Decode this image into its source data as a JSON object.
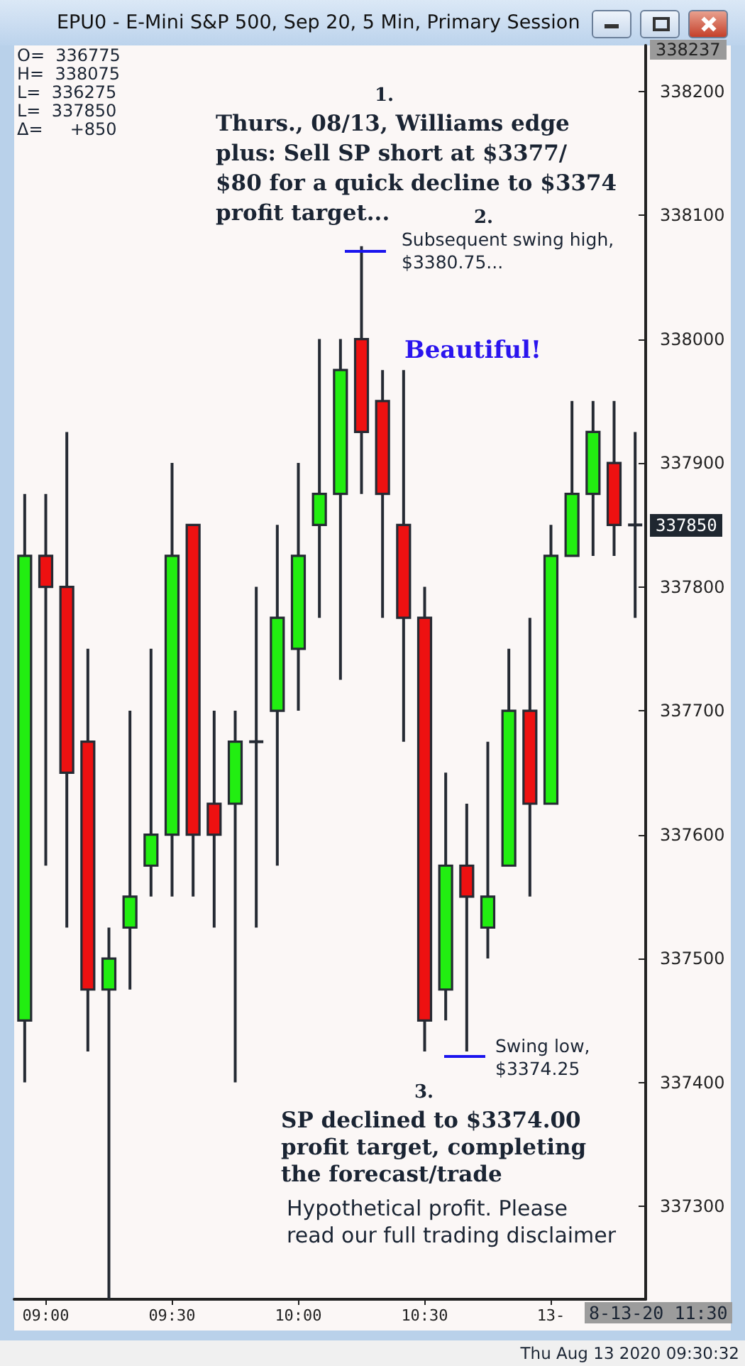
{
  "chart_data": {
    "type": "candlestick",
    "title": "EPU0 - E-Mini S&P 500, Sep 20, 5 Min, Primary Session",
    "categories": [
      null,
      "09:00",
      null,
      null,
      null,
      null,
      null,
      "09:30",
      null,
      null,
      null,
      null,
      null,
      "10:00",
      null,
      null,
      null,
      null,
      null,
      "10:30",
      null,
      null,
      null,
      null,
      null,
      "13-",
      null,
      null,
      null,
      null
    ],
    "ohlc": [
      [
        337450,
        337875,
        337400,
        337825
      ],
      [
        337825,
        337875,
        337575,
        337800
      ],
      [
        337800,
        337925,
        337525,
        337650
      ],
      [
        337675,
        337750,
        337425,
        337475
      ],
      [
        337475,
        337525,
        337225,
        337500
      ],
      [
        337525,
        337700,
        337475,
        337550
      ],
      [
        337575,
        337750,
        337550,
        337600
      ],
      [
        337600,
        337900,
        337550,
        337825
      ],
      [
        337850,
        337850,
        337550,
        337600
      ],
      [
        337625,
        337700,
        337525,
        337600
      ],
      [
        337625,
        337700,
        337400,
        337675
      ],
      [
        337675,
        337800,
        337525,
        337675
      ],
      [
        337700,
        337850,
        337575,
        337775
      ],
      [
        337750,
        337900,
        337700,
        337825
      ],
      [
        337850,
        338000,
        337775,
        337875
      ],
      [
        337875,
        338000,
        337725,
        337975
      ],
      [
        338000,
        338075,
        337875,
        337925
      ],
      [
        337950,
        337975,
        337775,
        337875
      ],
      [
        337850,
        337975,
        337675,
        337775
      ],
      [
        337775,
        337800,
        337425,
        337450
      ],
      [
        337475,
        337650,
        337450,
        337575
      ],
      [
        337575,
        337625,
        337425,
        337550
      ],
      [
        337525,
        337675,
        337500,
        337550
      ],
      [
        337575,
        337750,
        337575,
        337700
      ],
      [
        337700,
        337775,
        337550,
        337625
      ],
      [
        337625,
        337850,
        337625,
        337825
      ],
      [
        337825,
        337950,
        337825,
        337875
      ],
      [
        337875,
        337950,
        337825,
        337925
      ],
      [
        337900,
        337950,
        337825,
        337850
      ],
      [
        337850,
        337925,
        337775,
        337850
      ]
    ],
    "colors": [
      "#22ee11",
      "#ee1111",
      "#ee1111",
      "#ee1111",
      "#22ee11",
      "#22ee11",
      "#22ee11",
      "#22ee11",
      "#ee1111",
      "#ee1111",
      "#22ee11",
      "#22ee11",
      "#22ee11",
      "#22ee11",
      "#22ee11",
      "#22ee11",
      "#ee1111",
      "#ee1111",
      "#ee1111",
      "#ee1111",
      "#22ee11",
      "#ee1111",
      "#22ee11",
      "#22ee11",
      "#ee1111",
      "#22ee11",
      "#22ee11",
      "#22ee11",
      "#ee1111",
      "#22ee11"
    ],
    "ylim": [
      337225,
      338237
    ],
    "yticks": [
      337300,
      337400,
      337500,
      337600,
      337700,
      337800,
      337900,
      338000,
      338100,
      338200
    ],
    "grid": false,
    "annotations": [
      "O=  336775",
      "H=  338075",
      "L=  336275",
      "L=  337850",
      "Δ=     +850",
      "1.",
      "Thurs., 08/13, Williams edge plus: Sell SP short at $3377/ $80 for a quick decline to $3374 profit target...",
      "2.",
      "Subsequent swing high, $3380.75...",
      "Beautiful!",
      "Swing low, $3374.25",
      "3.",
      "SP declined to $3374.00 profit target, completing the forecast/trade",
      "Hypothetical profit.  Please read our full trading disclaimer",
      "8-13-20 11:30",
      "Thu Aug 13 2020 09:30:32",
      "338237",
      "337850"
    ]
  }
}
